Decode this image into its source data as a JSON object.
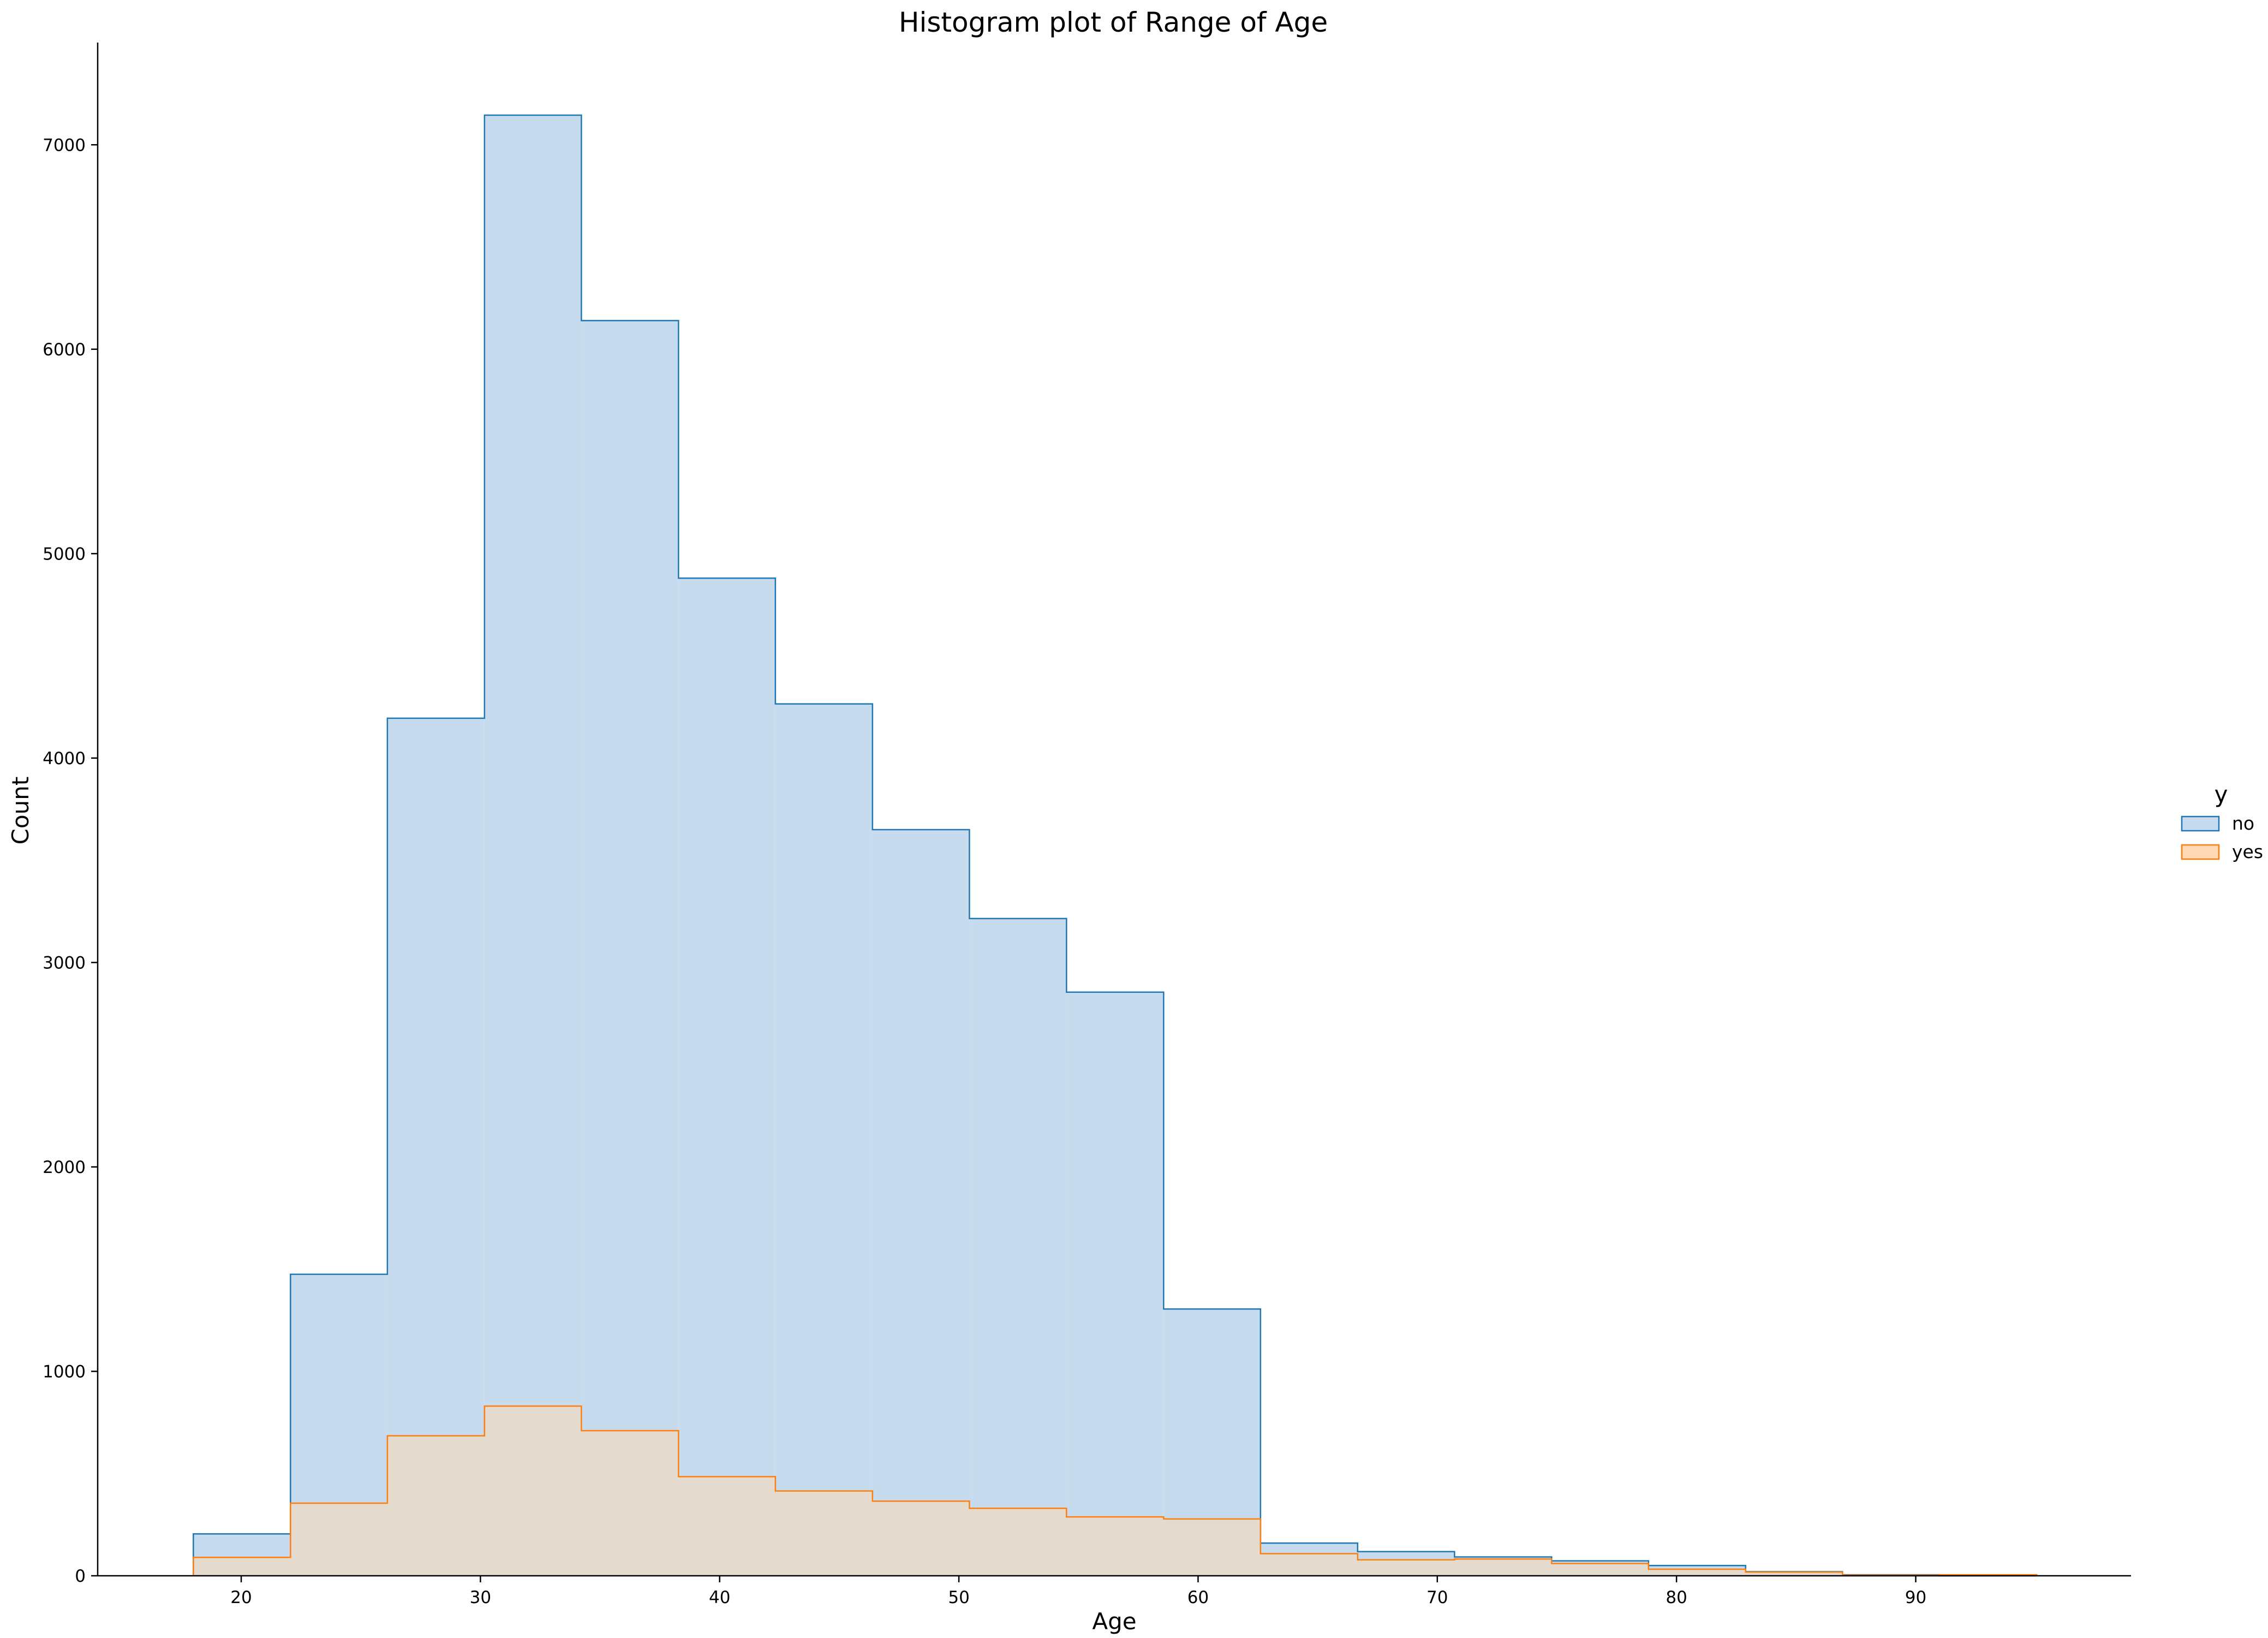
{
  "chart_data": {
    "type": "histogram",
    "title": "Histogram plot of Range of Age",
    "xlabel": "Age",
    "ylabel": "Count",
    "xlim": [
      14,
      99
    ],
    "ylim": [
      0,
      7500
    ],
    "x_ticks": [
      20,
      30,
      40,
      50,
      60,
      70,
      80,
      90
    ],
    "y_ticks": [
      0,
      1000,
      2000,
      3000,
      4000,
      5000,
      6000,
      7000
    ],
    "bin_edges": [
      18,
      22.06,
      26.11,
      30.17,
      34.22,
      38.28,
      42.33,
      46.39,
      50.44,
      54.5,
      58.56,
      62.61,
      66.67,
      70.72,
      74.78,
      78.83,
      82.89,
      86.94,
      91,
      95.06
    ],
    "legend": {
      "title": "y",
      "position": "right"
    },
    "grid": false,
    "series": [
      {
        "name": "no",
        "color": "#1f77b4",
        "fill": "#c6dbed",
        "values": [
          205,
          1475,
          4195,
          7145,
          6140,
          4880,
          4265,
          3650,
          3215,
          2855,
          1305,
          160,
          118,
          92,
          73,
          50,
          20,
          5,
          0
        ]
      },
      {
        "name": "yes",
        "color": "#ff7f0e",
        "fill": "#ffd8b5",
        "values": [
          90,
          355,
          685,
          830,
          710,
          485,
          415,
          365,
          330,
          288,
          278,
          108,
          78,
          82,
          60,
          32,
          18,
          3,
          5
        ]
      }
    ]
  }
}
